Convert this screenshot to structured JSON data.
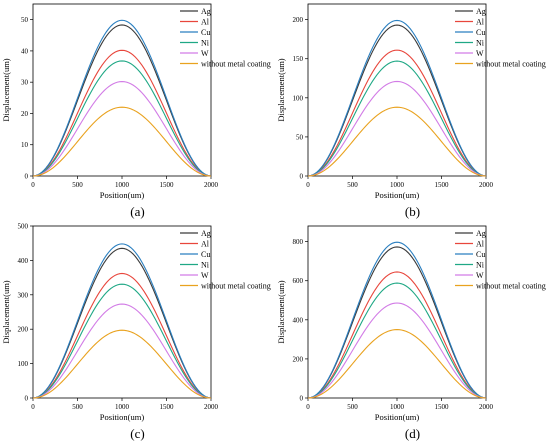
{
  "panels": [
    {
      "label": "(a)",
      "chart_data": {
        "type": "line",
        "xlabel": "Position(um)",
        "ylabel": "Displacement(um)",
        "xlim": [
          0,
          2000
        ],
        "ylim": [
          0,
          55
        ],
        "xticks": [
          0,
          500,
          1000,
          1500,
          2000
        ],
        "yticks": [
          0,
          10,
          20,
          30,
          40,
          50
        ],
        "legend_position": "top-right",
        "grid": false,
        "series": [
          {
            "name": "Ag",
            "peak": 48.3,
            "color": "#3a3a3a"
          },
          {
            "name": "Al",
            "peak": 40.2,
            "color": "#e8463c"
          },
          {
            "name": "Cu",
            "peak": 49.8,
            "color": "#2a7fc0"
          },
          {
            "name": "Ni",
            "peak": 36.8,
            "color": "#1fa885"
          },
          {
            "name": "W",
            "peak": 30.2,
            "color": "#d27ce6"
          },
          {
            "name": "without metal coating",
            "peak": 22.0,
            "color": "#e9a21f"
          }
        ]
      }
    },
    {
      "label": "(b)",
      "chart_data": {
        "type": "line",
        "xlabel": "Position(um)",
        "ylabel": "Displacement(um)",
        "xlim": [
          0,
          2000
        ],
        "ylim": [
          0,
          220
        ],
        "xticks": [
          0,
          500,
          1000,
          1500,
          2000
        ],
        "yticks": [
          0,
          50,
          100,
          150,
          200
        ],
        "legend_position": "top-right",
        "grid": false,
        "series": [
          {
            "name": "Ag",
            "peak": 193,
            "color": "#3a3a3a"
          },
          {
            "name": "Al",
            "peak": 161,
            "color": "#e8463c"
          },
          {
            "name": "Cu",
            "peak": 199,
            "color": "#2a7fc0"
          },
          {
            "name": "Ni",
            "peak": 147,
            "color": "#1fa885"
          },
          {
            "name": "W",
            "peak": 121,
            "color": "#d27ce6"
          },
          {
            "name": "without metal coating",
            "peak": 88,
            "color": "#e9a21f"
          }
        ]
      }
    },
    {
      "label": "(c)",
      "chart_data": {
        "type": "line",
        "xlabel": "Position(um)",
        "ylabel": "Displacement(um)",
        "xlim": [
          0,
          2000
        ],
        "ylim": [
          0,
          500
        ],
        "xticks": [
          0,
          500,
          1000,
          1500,
          2000
        ],
        "yticks": [
          0,
          100,
          200,
          300,
          400,
          500
        ],
        "legend_position": "top-right",
        "grid": false,
        "series": [
          {
            "name": "Ag",
            "peak": 435,
            "color": "#3a3a3a"
          },
          {
            "name": "Al",
            "peak": 362,
            "color": "#e8463c"
          },
          {
            "name": "Cu",
            "peak": 448,
            "color": "#2a7fc0"
          },
          {
            "name": "Ni",
            "peak": 331,
            "color": "#1fa885"
          },
          {
            "name": "W",
            "peak": 273,
            "color": "#d27ce6"
          },
          {
            "name": "without metal coating",
            "peak": 197,
            "color": "#e9a21f"
          }
        ]
      }
    },
    {
      "label": "(d)",
      "chart_data": {
        "type": "line",
        "xlabel": "Position(um)",
        "ylabel": "Displacement(um)",
        "xlim": [
          0,
          2000
        ],
        "ylim": [
          0,
          880
        ],
        "xticks": [
          0,
          500,
          1000,
          1500,
          2000
        ],
        "yticks": [
          0,
          200,
          400,
          600,
          800
        ],
        "legend_position": "top-right",
        "grid": false,
        "series": [
          {
            "name": "Ag",
            "peak": 773,
            "color": "#3a3a3a"
          },
          {
            "name": "Al",
            "peak": 645,
            "color": "#e8463c"
          },
          {
            "name": "Cu",
            "peak": 797,
            "color": "#2a7fc0"
          },
          {
            "name": "Ni",
            "peak": 588,
            "color": "#1fa885"
          },
          {
            "name": "W",
            "peak": 486,
            "color": "#d27ce6"
          },
          {
            "name": "without metal coating",
            "peak": 350,
            "color": "#e9a21f"
          }
        ]
      }
    }
  ]
}
